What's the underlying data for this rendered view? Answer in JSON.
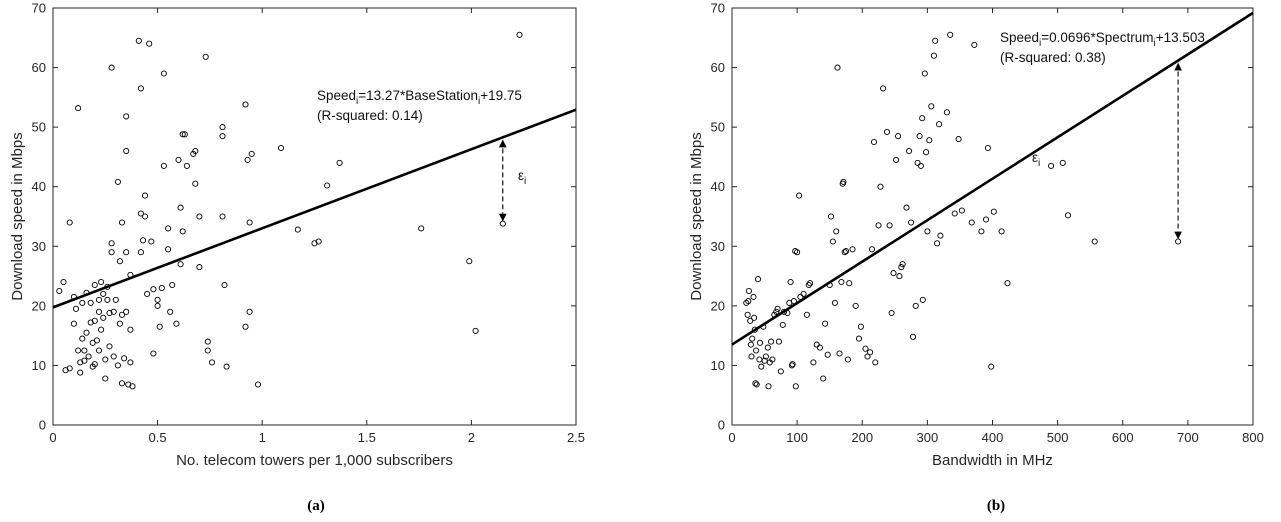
{
  "chart_data": [
    {
      "type": "scatter",
      "caption": "(a)",
      "xlabel": "No. telecom towers per 1,000 subscribers",
      "ylabel": "Download speed in Mbps",
      "xlim": [
        0,
        2.5
      ],
      "ylim": [
        0,
        70
      ],
      "xticks": [
        0,
        0.5,
        1,
        1.5,
        2,
        2.5
      ],
      "xtick_labels": [
        "0",
        "0.5",
        "1",
        "1.5",
        "2",
        "2.5"
      ],
      "yticks": [
        0,
        10,
        20,
        30,
        40,
        50,
        60,
        70
      ],
      "ytick_labels": [
        "0",
        "10",
        "20",
        "30",
        "40",
        "50",
        "60",
        "70"
      ],
      "grid": false,
      "fit": {
        "slope": 13.27,
        "intercept": 19.75
      },
      "equation": {
        "lhs": "Speed",
        "sub1": "i",
        "mid": "=13.27*BaseStation",
        "sub2": "i",
        "rhs": "+19.75"
      },
      "rsquared_label": "(R-squared: 0.14)",
      "residual": {
        "x": 2.15,
        "y": 33.8,
        "label": "ε",
        "label_sub": "i"
      },
      "points": [
        [
          0.03,
          22.5
        ],
        [
          0.05,
          24.0
        ],
        [
          0.06,
          9.2
        ],
        [
          0.08,
          34.0
        ],
        [
          0.08,
          9.5
        ],
        [
          0.1,
          21.5
        ],
        [
          0.1,
          17.0
        ],
        [
          0.11,
          19.5
        ],
        [
          0.12,
          53.2
        ],
        [
          0.12,
          12.5
        ],
        [
          0.13,
          10.5
        ],
        [
          0.13,
          8.8
        ],
        [
          0.14,
          20.5
        ],
        [
          0.14,
          14.5
        ],
        [
          0.15,
          12.5
        ],
        [
          0.15,
          10.8
        ],
        [
          0.16,
          22.2
        ],
        [
          0.16,
          15.5
        ],
        [
          0.17,
          11.5
        ],
        [
          0.18,
          20.5
        ],
        [
          0.18,
          17.2
        ],
        [
          0.19,
          9.8
        ],
        [
          0.19,
          13.8
        ],
        [
          0.2,
          23.5
        ],
        [
          0.2,
          17.5
        ],
        [
          0.2,
          10.2
        ],
        [
          0.21,
          14.2
        ],
        [
          0.22,
          21.0
        ],
        [
          0.22,
          19.0
        ],
        [
          0.22,
          12.5
        ],
        [
          0.23,
          24.0
        ],
        [
          0.23,
          16.0
        ],
        [
          0.24,
          22.0
        ],
        [
          0.24,
          18.0
        ],
        [
          0.25,
          11.0
        ],
        [
          0.25,
          7.8
        ],
        [
          0.26,
          23.2
        ],
        [
          0.26,
          21.0
        ],
        [
          0.27,
          18.8
        ],
        [
          0.27,
          13.2
        ],
        [
          0.28,
          60.0
        ],
        [
          0.28,
          30.5
        ],
        [
          0.28,
          29.0
        ],
        [
          0.29,
          19.0
        ],
        [
          0.29,
          11.5
        ],
        [
          0.3,
          21.0
        ],
        [
          0.31,
          40.8
        ],
        [
          0.31,
          10.0
        ],
        [
          0.32,
          27.5
        ],
        [
          0.32,
          17.0
        ],
        [
          0.33,
          34.0
        ],
        [
          0.33,
          18.5
        ],
        [
          0.33,
          7.0
        ],
        [
          0.34,
          11.2
        ],
        [
          0.35,
          51.8
        ],
        [
          0.35,
          46.0
        ],
        [
          0.35,
          29.0
        ],
        [
          0.35,
          19.0
        ],
        [
          0.36,
          6.8
        ],
        [
          0.37,
          25.2
        ],
        [
          0.37,
          16.0
        ],
        [
          0.37,
          10.5
        ],
        [
          0.38,
          6.5
        ],
        [
          0.41,
          64.5
        ],
        [
          0.42,
          56.5
        ],
        [
          0.42,
          35.5
        ],
        [
          0.42,
          29.0
        ],
        [
          0.43,
          31.0
        ],
        [
          0.44,
          38.5
        ],
        [
          0.44,
          35.0
        ],
        [
          0.45,
          22.0
        ],
        [
          0.46,
          64.0
        ],
        [
          0.47,
          30.8
        ],
        [
          0.48,
          22.8
        ],
        [
          0.48,
          12.0
        ],
        [
          0.5,
          21.0
        ],
        [
          0.5,
          20.0
        ],
        [
          0.51,
          16.5
        ],
        [
          0.52,
          23.0
        ],
        [
          0.53,
          59.0
        ],
        [
          0.53,
          43.5
        ],
        [
          0.55,
          33.0
        ],
        [
          0.55,
          29.5
        ],
        [
          0.56,
          19.0
        ],
        [
          0.57,
          23.5
        ],
        [
          0.59,
          17.0
        ],
        [
          0.6,
          44.5
        ],
        [
          0.61,
          36.5
        ],
        [
          0.61,
          27.0
        ],
        [
          0.62,
          48.8
        ],
        [
          0.62,
          32.5
        ],
        [
          0.63,
          48.8
        ],
        [
          0.64,
          43.5
        ],
        [
          0.67,
          45.5
        ],
        [
          0.68,
          46.0
        ],
        [
          0.68,
          40.5
        ],
        [
          0.7,
          35.0
        ],
        [
          0.7,
          26.5
        ],
        [
          0.73,
          61.8
        ],
        [
          0.74,
          14.0
        ],
        [
          0.74,
          12.5
        ],
        [
          0.76,
          10.5
        ],
        [
          0.81,
          50.0
        ],
        [
          0.81,
          48.5
        ],
        [
          0.81,
          35.0
        ],
        [
          0.82,
          23.5
        ],
        [
          0.83,
          9.8
        ],
        [
          0.92,
          53.8
        ],
        [
          0.92,
          16.5
        ],
        [
          0.93,
          44.5
        ],
        [
          0.94,
          34.0
        ],
        [
          0.94,
          19.0
        ],
        [
          0.95,
          45.5
        ],
        [
          0.98,
          6.8
        ],
        [
          1.09,
          46.5
        ],
        [
          1.17,
          32.8
        ],
        [
          1.25,
          30.5
        ],
        [
          1.27,
          30.8
        ],
        [
          1.31,
          40.2
        ],
        [
          1.37,
          44.0
        ],
        [
          1.76,
          33.0
        ],
        [
          1.99,
          27.5
        ],
        [
          2.02,
          15.8
        ],
        [
          2.23,
          65.5
        ],
        [
          2.15,
          33.8
        ]
      ]
    },
    {
      "type": "scatter",
      "caption": "(b)",
      "xlabel": "Bandwidth in MHz",
      "ylabel": "Download speed in Mbps",
      "xlim": [
        0,
        800
      ],
      "ylim": [
        0,
        70
      ],
      "xticks": [
        0,
        100,
        200,
        300,
        400,
        500,
        600,
        700,
        800
      ],
      "xtick_labels": [
        "0",
        "100",
        "200",
        "300",
        "400",
        "500",
        "600",
        "700",
        "800"
      ],
      "yticks": [
        0,
        10,
        20,
        30,
        40,
        50,
        60,
        70
      ],
      "ytick_labels": [
        "0",
        "10",
        "20",
        "30",
        "40",
        "50",
        "60",
        "70"
      ],
      "grid": false,
      "fit": {
        "slope": 0.0696,
        "intercept": 13.503
      },
      "equation": {
        "lhs": "Speed",
        "sub1": "i",
        "mid": "=0.0696*Spectrum",
        "sub2": "i",
        "rhs": "+13.503"
      },
      "rsquared_label": "(R-squared: 0.38)",
      "residual": {
        "x": 685,
        "y": 30.8,
        "label": "ε",
        "label_sub": "i"
      },
      "points": [
        [
          22,
          20.5
        ],
        [
          24,
          18.5
        ],
        [
          25,
          20.8
        ],
        [
          26,
          22.5
        ],
        [
          28,
          17.5
        ],
        [
          29,
          13.5
        ],
        [
          30,
          11.5
        ],
        [
          31,
          14.5
        ],
        [
          33,
          21.5
        ],
        [
          34,
          18.0
        ],
        [
          35,
          16.0
        ],
        [
          36,
          7.0
        ],
        [
          37,
          12.5
        ],
        [
          38,
          6.8
        ],
        [
          40,
          24.5
        ],
        [
          42,
          11.0
        ],
        [
          43,
          13.8
        ],
        [
          45,
          9.8
        ],
        [
          48,
          16.5
        ],
        [
          50,
          10.8
        ],
        [
          52,
          11.5
        ],
        [
          55,
          13.0
        ],
        [
          56,
          6.5
        ],
        [
          58,
          10.5
        ],
        [
          60,
          14.0
        ],
        [
          62,
          11.0
        ],
        [
          65,
          18.5
        ],
        [
          68,
          19.0
        ],
        [
          70,
          19.5
        ],
        [
          72,
          14.0
        ],
        [
          75,
          9.0
        ],
        [
          78,
          16.8
        ],
        [
          80,
          19.0
        ],
        [
          85,
          18.8
        ],
        [
          88,
          20.5
        ],
        [
          90,
          24.0
        ],
        [
          92,
          10.0
        ],
        [
          93,
          10.2
        ],
        [
          95,
          20.8
        ],
        [
          97,
          29.2
        ],
        [
          98,
          6.5
        ],
        [
          100,
          29.0
        ],
        [
          103,
          38.5
        ],
        [
          105,
          21.5
        ],
        [
          110,
          22.0
        ],
        [
          115,
          18.5
        ],
        [
          118,
          23.5
        ],
        [
          120,
          23.8
        ],
        [
          125,
          10.5
        ],
        [
          130,
          13.5
        ],
        [
          135,
          13.0
        ],
        [
          140,
          7.8
        ],
        [
          143,
          17.0
        ],
        [
          147,
          11.8
        ],
        [
          150,
          23.5
        ],
        [
          152,
          35.0
        ],
        [
          155,
          30.8
        ],
        [
          158,
          20.5
        ],
        [
          160,
          32.5
        ],
        [
          162,
          60.0
        ],
        [
          165,
          12.0
        ],
        [
          168,
          24.0
        ],
        [
          170,
          40.5
        ],
        [
          171,
          40.8
        ],
        [
          173,
          29.0
        ],
        [
          175,
          29.2
        ],
        [
          178,
          11.0
        ],
        [
          180,
          23.8
        ],
        [
          185,
          29.5
        ],
        [
          190,
          20.0
        ],
        [
          195,
          14.5
        ],
        [
          198,
          16.5
        ],
        [
          205,
          12.8
        ],
        [
          208,
          11.5
        ],
        [
          212,
          12.2
        ],
        [
          215,
          29.5
        ],
        [
          218,
          47.5
        ],
        [
          220,
          10.5
        ],
        [
          225,
          33.5
        ],
        [
          228,
          40.0
        ],
        [
          232,
          56.5
        ],
        [
          238,
          49.2
        ],
        [
          242,
          33.5
        ],
        [
          245,
          18.8
        ],
        [
          248,
          25.5
        ],
        [
          252,
          44.5
        ],
        [
          255,
          48.5
        ],
        [
          257,
          25.0
        ],
        [
          260,
          26.5
        ],
        [
          262,
          27.0
        ],
        [
          268,
          36.5
        ],
        [
          272,
          46.0
        ],
        [
          275,
          34.0
        ],
        [
          278,
          14.8
        ],
        [
          282,
          20.0
        ],
        [
          285,
          44.0
        ],
        [
          288,
          48.5
        ],
        [
          290,
          43.5
        ],
        [
          292,
          51.5
        ],
        [
          293,
          21.0
        ],
        [
          296,
          59.0
        ],
        [
          298,
          45.8
        ],
        [
          300,
          32.5
        ],
        [
          303,
          47.8
        ],
        [
          306,
          53.5
        ],
        [
          310,
          62.0
        ],
        [
          312,
          64.5
        ],
        [
          315,
          30.5
        ],
        [
          318,
          50.5
        ],
        [
          320,
          31.8
        ],
        [
          330,
          52.5
        ],
        [
          335,
          65.5
        ],
        [
          342,
          35.5
        ],
        [
          348,
          48.0
        ],
        [
          353,
          36.0
        ],
        [
          368,
          34.0
        ],
        [
          372,
          63.8
        ],
        [
          383,
          32.5
        ],
        [
          390,
          34.5
        ],
        [
          393,
          46.5
        ],
        [
          398,
          9.8
        ],
        [
          402,
          35.8
        ],
        [
          414,
          32.5
        ],
        [
          423,
          23.8
        ],
        [
          490,
          43.5
        ],
        [
          508,
          44.0
        ],
        [
          516,
          35.2
        ],
        [
          557,
          30.8
        ],
        [
          685,
          30.8
        ]
      ]
    }
  ]
}
